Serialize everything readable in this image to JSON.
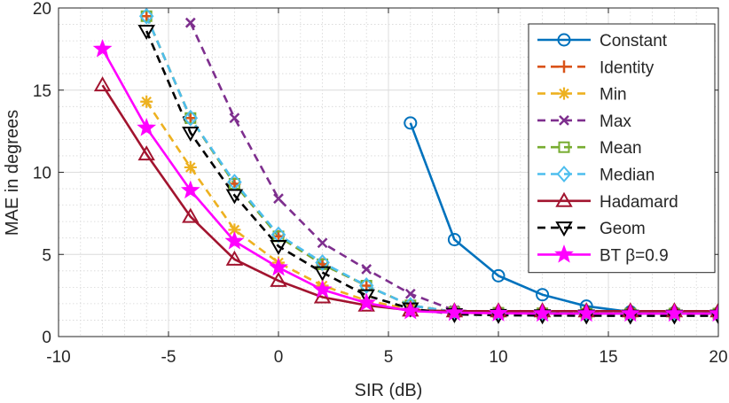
{
  "chart_data": {
    "type": "line",
    "xlabel": "SIR (dB)",
    "ylabel": "MAE in degrees",
    "xlim": [
      -10,
      20
    ],
    "ylim": [
      0,
      20
    ],
    "xticks": [
      -10,
      -5,
      0,
      5,
      10,
      15,
      20
    ],
    "xtick_labels": [
      "-10",
      "-5",
      "0",
      "5",
      "10",
      "15",
      "20"
    ],
    "yticks": [
      0,
      5,
      10,
      15,
      20
    ],
    "ytick_labels": [
      "0",
      "5",
      "10",
      "15",
      "20"
    ],
    "grid": true,
    "minor_grid": true,
    "legend_position": "top-right",
    "x": [
      -10,
      -8,
      -6,
      -4,
      -2,
      0,
      2,
      4,
      6,
      8,
      10,
      12,
      14,
      16,
      18,
      20
    ],
    "series": [
      {
        "name": "Constant",
        "color": "#0072BD",
        "dash": "solid",
        "marker": "circle",
        "values": [
          null,
          null,
          null,
          null,
          null,
          null,
          null,
          null,
          13.0,
          5.9,
          3.7,
          2.55,
          1.85,
          1.5,
          1.45,
          1.42
        ]
      },
      {
        "name": "Identity",
        "color": "#D95319",
        "dash": "dashed",
        "marker": "plus",
        "values": [
          null,
          null,
          19.5,
          13.3,
          9.3,
          6.1,
          4.4,
          3.1,
          1.9,
          1.5,
          1.45,
          1.42,
          1.4,
          1.4,
          1.4,
          1.4
        ]
      },
      {
        "name": "Min",
        "color": "#EDB120",
        "dash": "dashed",
        "marker": "asterisk",
        "values": [
          null,
          null,
          14.3,
          10.3,
          6.5,
          4.5,
          3.1,
          2.2,
          1.65,
          1.45,
          1.42,
          1.4,
          1.4,
          1.4,
          1.4,
          1.4
        ]
      },
      {
        "name": "Max",
        "color": "#7E2F8E",
        "dash": "dashed",
        "marker": "x",
        "values": [
          null,
          null,
          null,
          19.1,
          13.3,
          8.4,
          5.7,
          4.1,
          2.6,
          1.6,
          1.45,
          1.42,
          1.4,
          1.4,
          1.4,
          1.4
        ]
      },
      {
        "name": "Mean",
        "color": "#77AC30",
        "dash": "dashed",
        "marker": "square",
        "values": [
          null,
          null,
          19.5,
          13.3,
          9.3,
          6.1,
          4.4,
          3.1,
          1.9,
          1.5,
          1.45,
          1.42,
          1.4,
          1.4,
          1.4,
          1.4
        ]
      },
      {
        "name": "Median",
        "color": "#4DBEEE",
        "dash": "dashed",
        "marker": "diamond",
        "values": [
          null,
          null,
          19.5,
          13.3,
          9.4,
          6.2,
          4.5,
          3.1,
          1.9,
          1.5,
          1.45,
          1.42,
          1.4,
          1.4,
          1.4,
          1.4
        ]
      },
      {
        "name": "Hadamard",
        "color": "#A2142F",
        "dash": "solid",
        "marker": "triangle-up",
        "values": [
          null,
          15.3,
          11.1,
          7.3,
          4.7,
          3.4,
          2.4,
          1.9,
          1.6,
          1.55,
          1.55,
          1.55,
          1.55,
          1.55,
          1.55,
          1.55
        ]
      },
      {
        "name": "Geom",
        "color": "#000000",
        "dash": "dashed",
        "marker": "triangle-down",
        "values": [
          null,
          null,
          18.6,
          12.4,
          8.6,
          5.5,
          3.9,
          2.5,
          1.7,
          1.35,
          1.3,
          1.28,
          1.27,
          1.26,
          1.26,
          1.26
        ]
      },
      {
        "name": "BT β=0.9",
        "color": "#FF00FF",
        "dash": "solid",
        "marker": "star",
        "values": [
          null,
          17.5,
          12.7,
          8.9,
          5.8,
          4.2,
          2.85,
          2.05,
          1.55,
          1.45,
          1.42,
          1.4,
          1.4,
          1.4,
          1.4,
          1.4
        ]
      }
    ]
  }
}
